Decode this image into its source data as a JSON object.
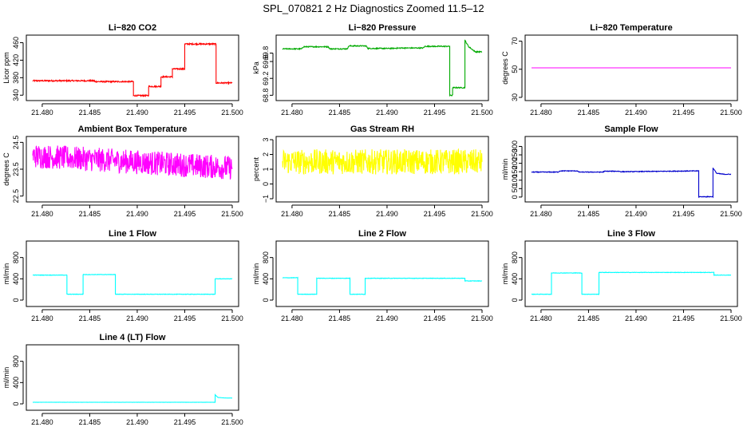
{
  "figure_title": "SPL_070821 2 Hz Diagnostics Zoomed 11.5–12",
  "chart_data": [
    {
      "type": "line",
      "title": "Li−820 CO2",
      "xlabel": "",
      "ylabel": "Licor ppm",
      "xlim": [
        21.479,
        21.5
      ],
      "ylim": [
        335,
        470
      ],
      "xticks": [
        21.48,
        21.485,
        21.49,
        21.495,
        21.5
      ],
      "yticks": [
        340,
        380,
        420,
        460
      ],
      "color": "#ff0000",
      "noise": 1.5,
      "series": [
        {
          "x": [
            21.479,
            21.4855,
            21.4855,
            21.4896,
            21.4896,
            21.4912,
            21.4912,
            21.4925,
            21.4925,
            21.4937,
            21.4937,
            21.495,
            21.495,
            21.4983,
            21.4983,
            21.5
          ],
          "y": [
            373,
            373,
            371,
            371,
            339,
            339,
            360,
            360,
            382,
            382,
            400,
            400,
            457,
            457,
            368,
            368
          ]
        }
      ]
    },
    {
      "type": "line",
      "title": "Li−820 Pressure",
      "xlabel": "",
      "ylabel": "kPa",
      "xlim": [
        21.479,
        21.5
      ],
      "ylim": [
        68.75,
        70.15
      ],
      "xticks": [
        21.48,
        21.485,
        21.49,
        21.495,
        21.5
      ],
      "yticks": [
        68.8,
        69.2,
        69.6,
        69.8
      ],
      "color": "#00aa00",
      "noise": 0.012,
      "series": [
        {
          "x": [
            21.479,
            21.481,
            21.4812,
            21.4838,
            21.484,
            21.4858,
            21.486,
            21.4878,
            21.488,
            21.4902,
            21.4915,
            21.4938,
            21.494,
            21.4966,
            21.4966,
            21.4969,
            21.4969,
            21.4982,
            21.4982,
            21.4986,
            21.4993,
            21.5
          ],
          "y": [
            69.9,
            69.9,
            69.95,
            69.95,
            69.9,
            69.9,
            69.97,
            69.97,
            69.91,
            69.91,
            69.92,
            69.92,
            69.96,
            69.96,
            68.8,
            68.8,
            68.98,
            68.98,
            70.1,
            69.95,
            69.83,
            69.83
          ]
        }
      ]
    },
    {
      "type": "line",
      "title": "Li−820 Temperature",
      "xlabel": "",
      "ylabel": "degrees C",
      "xlim": [
        21.479,
        21.5
      ],
      "ylim": [
        30,
        72
      ],
      "xticks": [
        21.48,
        21.485,
        21.49,
        21.495,
        21.5
      ],
      "yticks": [
        30,
        50,
        70
      ],
      "color": "#ff00ff",
      "noise": 0,
      "series": [
        {
          "x": [
            21.479,
            21.5
          ],
          "y": [
            51,
            51
          ]
        }
      ]
    },
    {
      "type": "line",
      "title": "Ambient Box Temperature",
      "xlabel": "",
      "ylabel": "degrees C",
      "xlim": [
        21.479,
        21.5
      ],
      "ylim": [
        22.4,
        24.6
      ],
      "xticks": [
        21.48,
        21.485,
        21.49,
        21.495,
        21.5
      ],
      "yticks": [
        22.5,
        23.5,
        24.5
      ],
      "color": "#ff00ff",
      "noise": 0.45,
      "series": [
        {
          "x": [
            21.479,
            21.5
          ],
          "y": [
            24.0,
            23.55
          ]
        }
      ]
    },
    {
      "type": "line",
      "title": "Gas Stream RH",
      "xlabel": "",
      "ylabel": "percent",
      "xlim": [
        21.479,
        21.5
      ],
      "ylim": [
        -1,
        3
      ],
      "xticks": [
        21.48,
        21.485,
        21.49,
        21.495,
        21.5
      ],
      "yticks": [
        -1,
        0,
        1,
        2,
        3
      ],
      "color": "#ffff00",
      "noise": 0.85,
      "series": [
        {
          "x": [
            21.479,
            21.5
          ],
          "y": [
            1.5,
            1.5
          ]
        }
      ]
    },
    {
      "type": "line",
      "title": "Sample Flow",
      "xlabel": "",
      "ylabel": "ml/min",
      "xlim": [
        21.479,
        21.5
      ],
      "ylim": [
        -10,
        340
      ],
      "xticks": [
        21.48,
        21.485,
        21.49,
        21.495,
        21.5
      ],
      "yticks": [
        0,
        50,
        100,
        150,
        200,
        250,
        300
      ],
      "color": "#0000cc",
      "noise": 2,
      "series": [
        {
          "x": [
            21.479,
            21.4818,
            21.482,
            21.4838,
            21.484,
            21.4865,
            21.4867,
            21.4882,
            21.4884,
            21.4966,
            21.4966,
            21.4981,
            21.4981,
            21.4985,
            21.4993,
            21.5
          ],
          "y": [
            148,
            148,
            155,
            155,
            148,
            148,
            153,
            153,
            150,
            155,
            2,
            2,
            172,
            140,
            135,
            135
          ]
        }
      ]
    },
    {
      "type": "line",
      "title": "Line 1 Flow",
      "xlabel": "",
      "ylabel": "ml/min",
      "xlim": [
        21.479,
        21.5
      ],
      "ylim": [
        -60,
        1050
      ],
      "xticks": [
        21.48,
        21.485,
        21.49,
        21.495,
        21.5
      ],
      "yticks": [
        0,
        400,
        800
      ],
      "color": "#00ffff",
      "noise": 4,
      "series": [
        {
          "x": [
            21.479,
            21.4826,
            21.4826,
            21.4843,
            21.4843,
            21.4877,
            21.4877,
            21.4982,
            21.4982,
            21.5
          ],
          "y": [
            470,
            470,
            110,
            110,
            480,
            480,
            110,
            110,
            400,
            400
          ]
        }
      ]
    },
    {
      "type": "line",
      "title": "Line 2 Flow",
      "xlabel": "",
      "ylabel": "ml/min",
      "xlim": [
        21.479,
        21.5
      ],
      "ylim": [
        -60,
        1050
      ],
      "xticks": [
        21.48,
        21.485,
        21.49,
        21.495,
        21.5
      ],
      "yticks": [
        0,
        400,
        800
      ],
      "color": "#00ffff",
      "noise": 4,
      "series": [
        {
          "x": [
            21.479,
            21.4806,
            21.4806,
            21.4826,
            21.4826,
            21.4861,
            21.4861,
            21.4877,
            21.4877,
            21.4982,
            21.4982,
            21.5
          ],
          "y": [
            420,
            420,
            110,
            110,
            410,
            410,
            110,
            110,
            410,
            410,
            360,
            360
          ]
        }
      ]
    },
    {
      "type": "line",
      "title": "Line 3 Flow",
      "xlabel": "",
      "ylabel": "ml/min",
      "xlim": [
        21.479,
        21.5
      ],
      "ylim": [
        -60,
        1050
      ],
      "xticks": [
        21.48,
        21.485,
        21.49,
        21.495,
        21.5
      ],
      "yticks": [
        0,
        400,
        800
      ],
      "color": "#00ffff",
      "noise": 4,
      "series": [
        {
          "x": [
            21.479,
            21.4811,
            21.4811,
            21.4843,
            21.4843,
            21.4861,
            21.4861,
            21.4982,
            21.4982,
            21.5
          ],
          "y": [
            110,
            110,
            510,
            510,
            110,
            110,
            520,
            520,
            470,
            470
          ]
        }
      ]
    },
    {
      "type": "line",
      "title": "Line 4 (LT) Flow",
      "xlabel": "",
      "ylabel": "ml/min",
      "xlim": [
        21.479,
        21.5
      ],
      "ylim": [
        -60,
        1050
      ],
      "xticks": [
        21.48,
        21.485,
        21.49,
        21.495,
        21.5
      ],
      "yticks": [
        0,
        400,
        800
      ],
      "color": "#00ffff",
      "noise": 1,
      "series": [
        {
          "x": [
            21.479,
            21.4982,
            21.4982,
            21.4985,
            21.4993,
            21.5
          ],
          "y": [
            30,
            30,
            170,
            120,
            110,
            110
          ]
        }
      ]
    }
  ]
}
